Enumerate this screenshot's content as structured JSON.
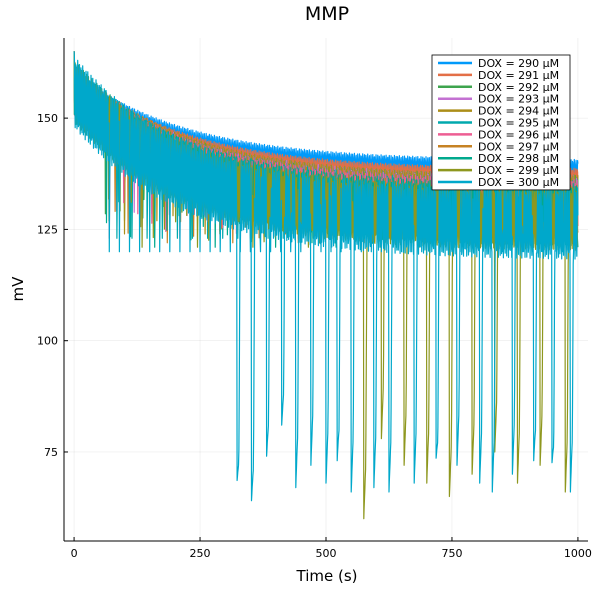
{
  "chart_data": {
    "type": "line",
    "title": "MMP",
    "xlabel": "Time (s)",
    "ylabel": "mV",
    "xlim": [
      -20,
      1020
    ],
    "ylim": [
      55,
      168
    ],
    "x_ticks": [
      0,
      250,
      500,
      750,
      1000
    ],
    "y_ticks": [
      75,
      100,
      125,
      150
    ],
    "grid": true,
    "legend_position": "top-right",
    "series": [
      {
        "name": "DOX = 290 μM",
        "color": "#009AFA",
        "start": 158,
        "base_end": 138,
        "band": 2.5,
        "dip_min": 0,
        "period": 0
      },
      {
        "name": "DOX = 291 μM",
        "color": "#E36F47",
        "start": 158,
        "base_end": 136,
        "band": 2.5,
        "dip_min": 0,
        "period": 0
      },
      {
        "name": "DOX = 292 μM",
        "color": "#3EA44E",
        "start": 157,
        "base_end": 133,
        "band": 4,
        "dip_min": 127,
        "period": 38
      },
      {
        "name": "DOX = 293 μM",
        "color": "#C371D2",
        "start": 157,
        "base_end": 133,
        "band": 4,
        "dip_min": 126,
        "period": 35
      },
      {
        "name": "DOX = 294 μM",
        "color": "#AC8E18",
        "start": 157,
        "base_end": 132,
        "band": 5,
        "dip_min": 124,
        "period": 32
      },
      {
        "name": "DOX = 295 μM",
        "color": "#00A9AD",
        "start": 157,
        "base_end": 131,
        "band": 5,
        "dip_min": 123,
        "period": 30
      },
      {
        "name": "DOX = 296 μM",
        "color": "#ED5E93",
        "start": 156,
        "base_end": 130,
        "band": 6,
        "dip_min": 123,
        "period": 28
      },
      {
        "name": "DOX = 297 μM",
        "color": "#C68224",
        "start": 156,
        "base_end": 129,
        "band": 6,
        "dip_min": 122,
        "period": 26
      },
      {
        "name": "DOX = 298 μM",
        "color": "#00A98D",
        "start": 156,
        "base_end": 128,
        "band": 7,
        "dip_min": 121,
        "period": 24
      },
      {
        "name": "DOX = 299 μM",
        "color": "#8E971E",
        "start": 156,
        "base_end": 127,
        "band": 7,
        "dip_min": 121,
        "period": 22,
        "spikes": [
          [
            575,
            60
          ],
          [
            610,
            78
          ],
          [
            655,
            72
          ],
          [
            700,
            68
          ],
          [
            745,
            65
          ],
          [
            790,
            70
          ],
          [
            835,
            75
          ],
          [
            880,
            68
          ],
          [
            925,
            72
          ],
          [
            975,
            66
          ]
        ]
      },
      {
        "name": "DOX = 300 μM",
        "color": "#00A8CB",
        "start": 156,
        "base_end": 126,
        "band": 8,
        "dip_min": 120,
        "period": 20,
        "spikes": [
          [
            323,
            62
          ],
          [
            352,
            58
          ],
          [
            382,
            68
          ],
          [
            412,
            75
          ],
          [
            440,
            67
          ],
          [
            470,
            72
          ],
          [
            500,
            68
          ],
          [
            522,
            67
          ],
          [
            550,
            66
          ],
          [
            595,
            67
          ],
          [
            625,
            66
          ],
          [
            675,
            68
          ],
          [
            718,
            67
          ],
          [
            760,
            72
          ],
          [
            805,
            68
          ],
          [
            830,
            66
          ],
          [
            870,
            70
          ],
          [
            912,
            67
          ],
          [
            948,
            66
          ],
          [
            985,
            66
          ]
        ]
      }
    ]
  }
}
